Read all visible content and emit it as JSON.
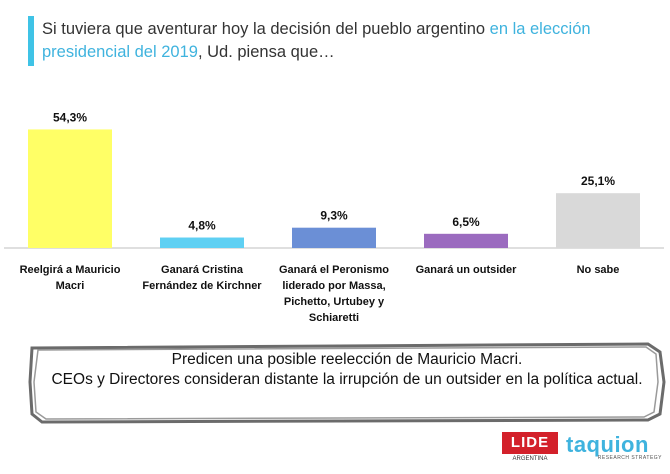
{
  "title": {
    "prefix": "Si tuviera que aventurar hoy la decisión del pueblo argentino ",
    "highlight": "en la elección presidencial del 2019",
    "suffix": ", Ud. piensa que…",
    "accent_color": "#3fc3e6"
  },
  "chart_data": {
    "type": "bar",
    "categories": [
      "Reelgirá a Mauricio Macri",
      "Ganará Cristina Fernández de Kirchner",
      "Ganará el Peronismo liderado por Massa, Pichetto, Urtubey y Schiaretti",
      "Ganará un outsider",
      "No sabe"
    ],
    "values": [
      54.3,
      4.8,
      9.3,
      6.5,
      25.1
    ],
    "value_labels": [
      "54,3%",
      "4,8%",
      "9,3%",
      "6,5%",
      "25,1%"
    ],
    "colors": [
      "#ffff66",
      "#5fd0f3",
      "#6b8fd6",
      "#9b6bbf",
      "#d9d9d9"
    ],
    "ylim": [
      0,
      60
    ],
    "grid": false,
    "legend": "none"
  },
  "banner": {
    "line1": "Predicen una posible reelección de Mauricio Macri.",
    "line2": "CEOs y Directores consideran distante la irrupción de un outsider en la política actual."
  },
  "logos": {
    "lide": "LIDE",
    "lide_sub": "ARGENTINA",
    "taquion": "taquion",
    "taquion_sub": "RESEARCH STRATEGY"
  }
}
